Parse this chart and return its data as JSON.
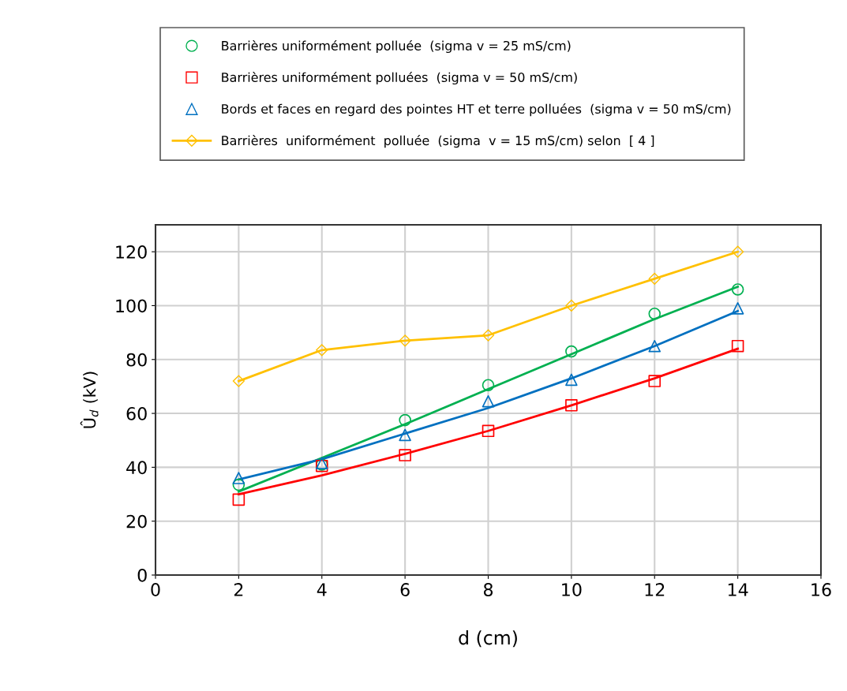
{
  "chart_data": {
    "type": "scatter",
    "xlabel": "d (cm)",
    "ylabel": "Û$_{d}$ (kV)",
    "x": [
      2,
      4,
      6,
      8,
      10,
      12,
      14
    ],
    "xlim": [
      0,
      16
    ],
    "xticks": [
      0,
      2,
      4,
      6,
      8,
      10,
      12,
      14,
      16
    ],
    "ylim": [
      0,
      130
    ],
    "yticks": [
      0,
      20,
      40,
      60,
      80,
      100,
      120
    ],
    "grid": true,
    "legend": "top",
    "series": [
      {
        "name": "Barrières uniformément polluée  (sigma v = 25 mS/cm)",
        "color": "#00b050",
        "marker": "circle",
        "values": [
          33.5,
          41,
          57.5,
          70.5,
          83,
          97,
          106
        ]
      },
      {
        "name": "Barrières uniformément polluées  (sigma v = 50 mS/cm)",
        "color": "#ff0000",
        "marker": "square",
        "values": [
          28,
          40.5,
          44.5,
          53.5,
          63,
          72,
          85
        ]
      },
      {
        "name": "Bords et faces en regard des pointes HT et terre polluées  (sigma v = 50 mS/cm)",
        "color": "#0070c0",
        "marker": "triangle",
        "values": [
          36,
          41.5,
          52,
          64.5,
          72.5,
          85,
          99
        ]
      },
      {
        "name": "Barrières  uniformément  polluée  (sigma  v = 15 mS/cm) selon  [ 4 ]",
        "color": "#ffc000",
        "type": "line",
        "marker": "diamond",
        "line_style": "solid",
        "values": [
          72,
          83.5,
          87,
          89,
          100,
          110,
          120
        ]
      },
      {
        "color": "#00b050",
        "type": "line",
        "marker": "none",
        "line_style": "solid",
        "values": [
          31,
          43.5,
          56,
          69,
          82,
          95,
          107
        ]
      },
      {
        "color": "#ff0000",
        "type": "line",
        "marker": "none",
        "line_style": "solid",
        "values": [
          30,
          37,
          45,
          53.5,
          63,
          73,
          84
        ]
      },
      {
        "color": "#0070c0",
        "type": "line",
        "marker": "none",
        "line_style": "solid",
        "values": [
          35.5,
          43,
          52.5,
          62,
          73,
          85,
          98
        ]
      }
    ]
  }
}
